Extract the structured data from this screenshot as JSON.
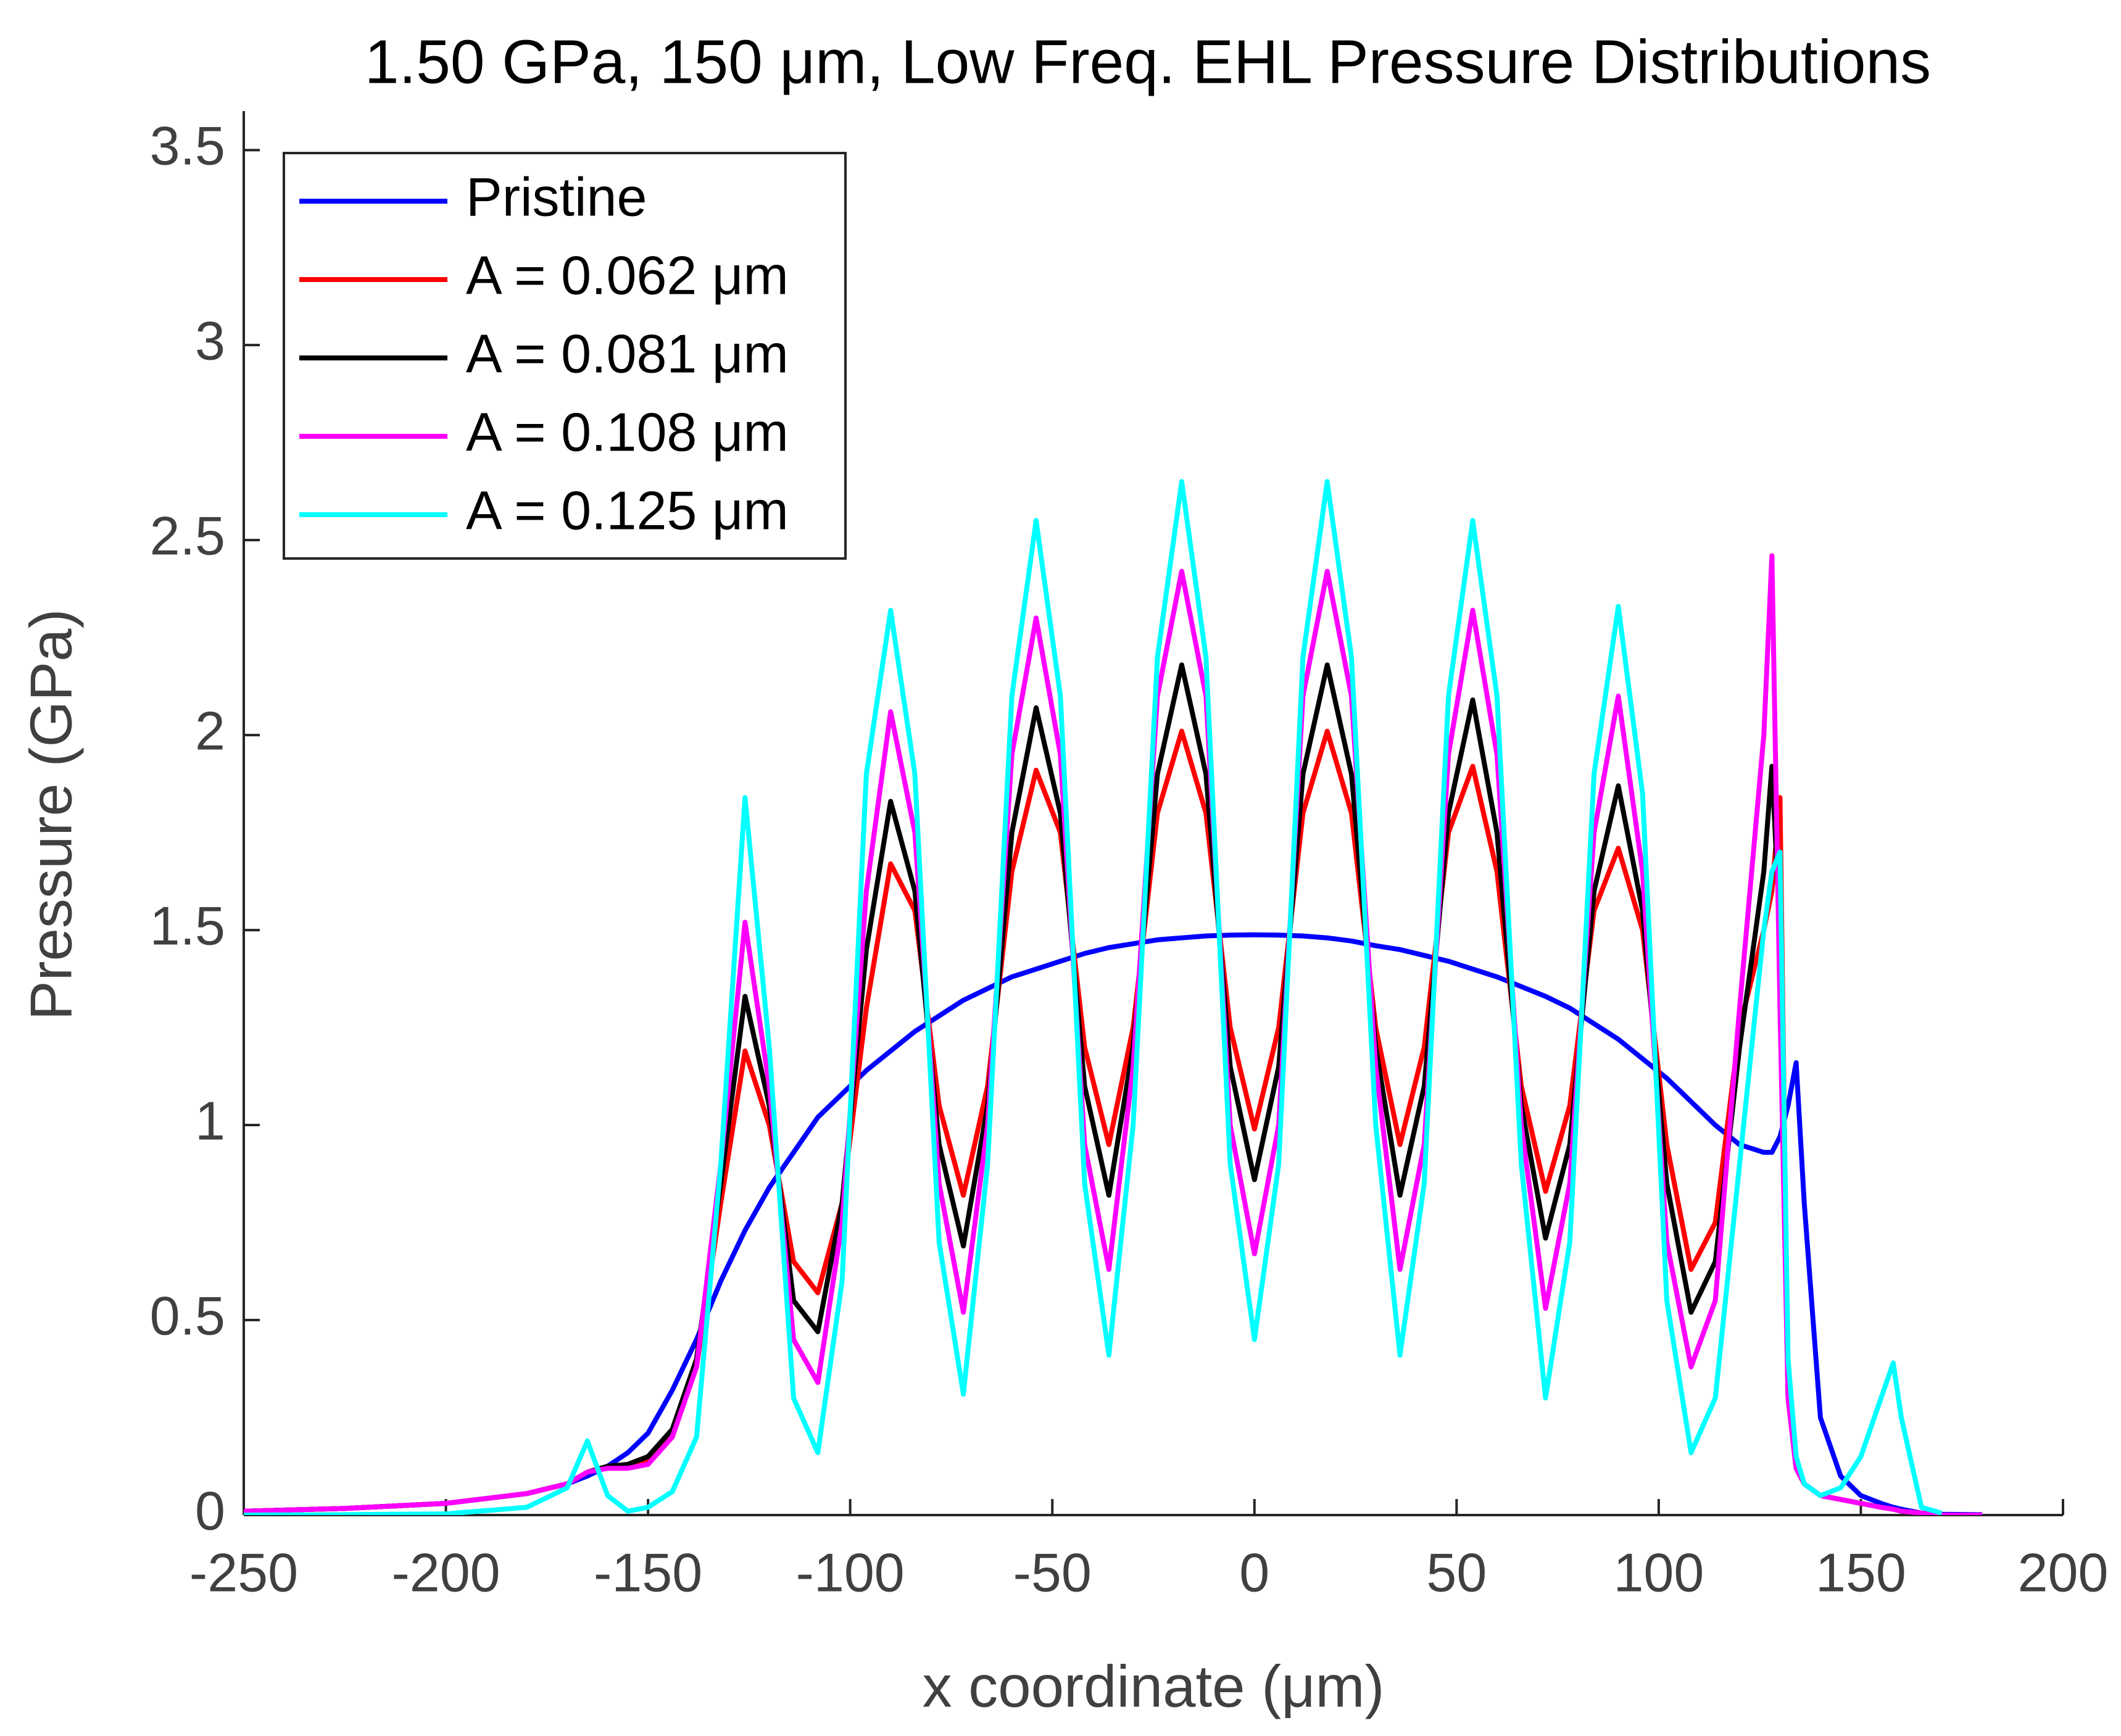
{
  "chart_data": {
    "type": "line",
    "title": "1.50 GPa, 150 μm, Low Freq. EHL Pressure Distributions",
    "x_label": "x coordinate (μm)",
    "y_label": "Pressure (GPa)",
    "xlim": [
      -250,
      200
    ],
    "xticks": [
      -250,
      -200,
      -150,
      -100,
      -50,
      0,
      50,
      100,
      150,
      200
    ],
    "ylim": [
      0,
      3.6
    ],
    "yticks": [
      0,
      0.5,
      1,
      1.5,
      2,
      2.5,
      3,
      3.5
    ],
    "legend_position": "upper-left",
    "x": [
      -250,
      -225,
      -200,
      -180,
      -170,
      -165,
      -160,
      -155,
      -150,
      -144,
      -138,
      -132,
      -126,
      -120,
      -114,
      -108,
      -102,
      -96,
      -90,
      -84,
      -78,
      -72,
      -66,
      -60,
      -54,
      -48,
      -42,
      -36,
      -30,
      -24,
      -18,
      -12,
      -6,
      0,
      6,
      12,
      18,
      24,
      30,
      36,
      42,
      48,
      54,
      60,
      66,
      72,
      78,
      84,
      90,
      96,
      102,
      108,
      114,
      120,
      126,
      128,
      130,
      132,
      134,
      136,
      140,
      145,
      150,
      155,
      158,
      160,
      165,
      170,
      180
    ],
    "series": [
      {
        "name": "Pristine",
        "color": "#0000ff",
        "values": [
          0.01,
          0.017,
          0.03,
          0.055,
          0.08,
          0.1,
          0.125,
          0.16,
          0.21,
          0.32,
          0.45,
          0.6,
          0.73,
          0.84,
          0.93,
          1.02,
          1.08,
          1.14,
          1.19,
          1.24,
          1.28,
          1.32,
          1.35,
          1.38,
          1.4,
          1.42,
          1.44,
          1.455,
          1.465,
          1.475,
          1.48,
          1.485,
          1.487,
          1.488,
          1.487,
          1.485,
          1.48,
          1.472,
          1.46,
          1.45,
          1.435,
          1.42,
          1.4,
          1.38,
          1.355,
          1.33,
          1.3,
          1.26,
          1.22,
          1.17,
          1.12,
          1.06,
          1.0,
          0.95,
          0.93,
          0.93,
          0.97,
          1.05,
          1.16,
          0.8,
          0.25,
          0.1,
          0.05,
          0.03,
          0.02,
          0.015,
          0.005,
          0.002,
          0.001
        ]
      },
      {
        "name": "A = 0.062 μm",
        "color": "#ff0000",
        "values": [
          0.01,
          0.017,
          0.03,
          0.055,
          0.08,
          0.11,
          0.125,
          0.13,
          0.14,
          0.2,
          0.38,
          0.8,
          1.19,
          1.0,
          0.65,
          0.57,
          0.8,
          1.3,
          1.67,
          1.55,
          1.05,
          0.82,
          1.1,
          1.65,
          1.91,
          1.75,
          1.2,
          0.95,
          1.25,
          1.8,
          2.01,
          1.8,
          1.25,
          0.99,
          1.25,
          1.8,
          2.01,
          1.8,
          1.25,
          0.95,
          1.2,
          1.75,
          1.92,
          1.65,
          1.1,
          0.83,
          1.05,
          1.55,
          1.71,
          1.5,
          0.95,
          0.63,
          0.75,
          1.25,
          1.5,
          1.6,
          1.84,
          0.3,
          0.12,
          0.08,
          0.05,
          0.04,
          0.03,
          0.02,
          0.015,
          0.01,
          0.005,
          0,
          0
        ]
      },
      {
        "name": "A = 0.081 μm",
        "color": "#000000",
        "values": [
          0.01,
          0.017,
          0.03,
          0.055,
          0.08,
          0.11,
          0.125,
          0.13,
          0.15,
          0.22,
          0.4,
          0.85,
          1.33,
          1.05,
          0.55,
          0.47,
          0.8,
          1.45,
          1.83,
          1.6,
          0.95,
          0.69,
          1.05,
          1.75,
          2.07,
          1.8,
          1.1,
          0.82,
          1.2,
          1.9,
          2.18,
          1.9,
          1.15,
          0.86,
          1.15,
          1.9,
          2.18,
          1.9,
          1.2,
          0.82,
          1.1,
          1.8,
          2.09,
          1.75,
          1.05,
          0.71,
          0.95,
          1.6,
          1.87,
          1.55,
          0.85,
          0.52,
          0.65,
          1.2,
          1.65,
          1.92,
          1.5,
          0.3,
          0.12,
          0.08,
          0.05,
          0.04,
          0.03,
          0.02,
          0.015,
          0.01,
          0.005,
          0,
          0
        ]
      },
      {
        "name": "A = 0.108 μm",
        "color": "#ff00ff",
        "values": [
          0.01,
          0.017,
          0.03,
          0.055,
          0.08,
          0.11,
          0.12,
          0.12,
          0.13,
          0.2,
          0.38,
          0.9,
          1.52,
          1.1,
          0.45,
          0.34,
          0.75,
          1.6,
          2.06,
          1.75,
          0.85,
          0.52,
          1.0,
          1.95,
          2.3,
          1.95,
          0.95,
          0.63,
          1.15,
          2.1,
          2.42,
          2.1,
          1.0,
          0.67,
          1.0,
          2.1,
          2.42,
          2.1,
          1.15,
          0.63,
          0.95,
          1.95,
          2.32,
          1.95,
          1.0,
          0.53,
          0.85,
          1.75,
          2.1,
          1.65,
          0.7,
          0.38,
          0.55,
          1.3,
          2.0,
          2.46,
          1.3,
          0.3,
          0.12,
          0.08,
          0.05,
          0.04,
          0.03,
          0.02,
          0.015,
          0.01,
          0.005,
          0,
          0
        ]
      },
      {
        "name": "A = 0.125 μm",
        "color": "#00ffff",
        "values": [
          0,
          0.001,
          0.003,
          0.02,
          0.07,
          0.19,
          0.05,
          0.01,
          0.02,
          0.06,
          0.2,
          0.9,
          1.84,
          1.2,
          0.3,
          0.16,
          0.6,
          1.9,
          2.32,
          1.9,
          0.7,
          0.31,
          0.9,
          2.1,
          2.55,
          2.1,
          0.85,
          0.41,
          1.0,
          2.2,
          2.65,
          2.2,
          0.9,
          0.45,
          0.9,
          2.2,
          2.65,
          2.2,
          1.0,
          0.41,
          0.85,
          2.1,
          2.55,
          2.1,
          0.9,
          0.3,
          0.7,
          1.9,
          2.33,
          1.85,
          0.55,
          0.16,
          0.3,
          0.9,
          1.5,
          1.65,
          1.7,
          0.4,
          0.15,
          0.08,
          0.05,
          0.07,
          0.15,
          0.3,
          0.39,
          0.25,
          0.02,
          0.005,
          null
        ]
      }
    ]
  }
}
